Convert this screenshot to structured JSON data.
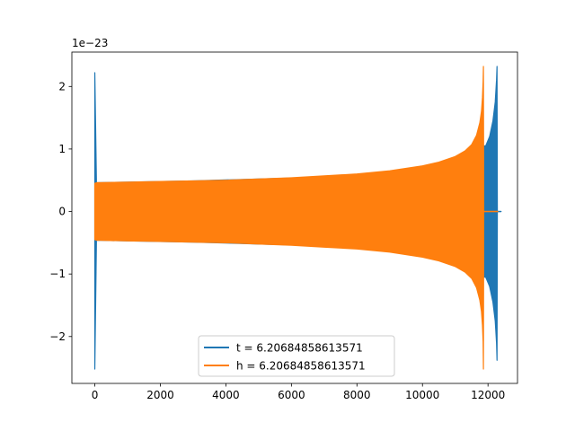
{
  "chart_data": {
    "type": "line",
    "title": "",
    "xlabel": "",
    "ylabel": "",
    "y_scale_label": "1e−23",
    "xlim": [
      -700,
      12900
    ],
    "ylim": [
      -2.75,
      2.55
    ],
    "xticks": [
      0,
      2000,
      4000,
      6000,
      8000,
      10000,
      12000
    ],
    "xtick_labels": [
      "0",
      "2000",
      "4000",
      "6000",
      "8000",
      "10000",
      "12000"
    ],
    "yticks": [
      -2,
      -1,
      0,
      1,
      2
    ],
    "ytick_labels": [
      "−2",
      "−1",
      "0",
      "1",
      "2"
    ],
    "grid": false,
    "legend_position": "lower center",
    "series": [
      {
        "name": "t = 6.20684858613571",
        "color": "#1f77b4",
        "envelope_x": [
          0,
          50,
          1000,
          3000,
          5000,
          7000,
          9000,
          10500,
          11300,
          11700,
          11880,
          11930,
          12050,
          12150,
          12220,
          12260,
          12275,
          12285,
          12400
        ],
        "envelope_upper": [
          2.22,
          0.46,
          0.47,
          0.49,
          0.52,
          0.55,
          0.6,
          0.68,
          0.8,
          1.0,
          1.05,
          1.05,
          1.2,
          1.45,
          1.75,
          2.1,
          2.32,
          0.0,
          0.0
        ],
        "envelope_lower": [
          -2.52,
          -0.46,
          -0.47,
          -0.49,
          -0.52,
          -0.55,
          -0.6,
          -0.68,
          -0.8,
          -1.0,
          -1.05,
          -1.05,
          -1.2,
          -1.45,
          -1.75,
          -2.1,
          -2.38,
          0.0,
          0.0
        ]
      },
      {
        "name": "h = 6.20684858613571",
        "color": "#ff7f0e",
        "envelope_x": [
          0,
          50,
          1000,
          2000,
          3000,
          4000,
          5000,
          6000,
          7000,
          8000,
          9000,
          10000,
          10500,
          11000,
          11300,
          11500,
          11650,
          11750,
          11800,
          11830,
          11850,
          11860,
          11870,
          12300
        ],
        "envelope_upper": [
          0.45,
          0.46,
          0.47,
          0.48,
          0.49,
          0.5,
          0.52,
          0.54,
          0.57,
          0.6,
          0.65,
          0.73,
          0.79,
          0.88,
          0.97,
          1.07,
          1.22,
          1.42,
          1.6,
          1.82,
          2.08,
          2.32,
          0.0,
          0.0
        ],
        "envelope_lower": [
          -0.45,
          -0.46,
          -0.47,
          -0.48,
          -0.49,
          -0.5,
          -0.52,
          -0.54,
          -0.57,
          -0.6,
          -0.65,
          -0.73,
          -0.79,
          -0.88,
          -0.97,
          -1.07,
          -1.22,
          -1.42,
          -1.6,
          -1.82,
          -2.08,
          -2.52,
          0.0,
          0.0
        ]
      }
    ]
  }
}
